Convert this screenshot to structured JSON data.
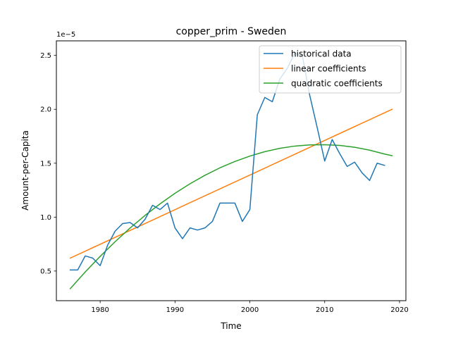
{
  "chart_data": {
    "type": "line",
    "title": "copper_prim - Sweden",
    "xlabel": "Time",
    "ylabel": "Amount-per-Capita",
    "y_offset_label": "1e−5",
    "xlim": [
      1974.15,
      2020.85
    ],
    "ylim": [
      0.225,
      2.635
    ],
    "x_ticks": [
      1980,
      1990,
      2000,
      2010,
      2020
    ],
    "y_ticks": [
      0.5,
      1.0,
      1.5,
      2.0,
      2.5
    ],
    "y_tick_labels": [
      "0.5",
      "1.0",
      "1.5",
      "2.0",
      "2.5"
    ],
    "grid": false,
    "legend_position": "upper right",
    "series": [
      {
        "name": "historical data",
        "color": "#1f77b4",
        "x": [
          1976,
          1977,
          1978,
          1979,
          1980,
          1981,
          1982,
          1983,
          1984,
          1985,
          1986,
          1987,
          1988,
          1989,
          1990,
          1991,
          1992,
          1993,
          1994,
          1995,
          1996,
          1997,
          1998,
          1999,
          2000,
          2001,
          2002,
          2003,
          2004,
          2005,
          2006,
          2007,
          2008,
          2009,
          2010,
          2011,
          2012,
          2013,
          2014,
          2015,
          2016,
          2017,
          2018
        ],
        "values": [
          0.51,
          0.51,
          0.64,
          0.62,
          0.55,
          0.74,
          0.87,
          0.94,
          0.95,
          0.9,
          0.98,
          1.11,
          1.07,
          1.13,
          0.9,
          0.8,
          0.9,
          0.88,
          0.9,
          0.96,
          1.13,
          1.13,
          1.13,
          0.96,
          1.07,
          1.95,
          2.11,
          2.07,
          2.28,
          2.38,
          2.52,
          2.5,
          2.13,
          1.83,
          1.52,
          1.72,
          1.59,
          1.47,
          1.51,
          1.41,
          1.34,
          1.5,
          1.48
        ]
      },
      {
        "name": "linear coefficients",
        "color": "#ff7f0e",
        "x": [
          1976,
          2019
        ],
        "values": [
          0.62,
          2.0
        ]
      },
      {
        "name": "quadratic coefficients",
        "color": "#2ca02c",
        "x": [
          1976,
          1978,
          1980,
          1982,
          1984,
          1986,
          1988,
          1990,
          1992,
          1994,
          1996,
          1998,
          2000,
          2002,
          2004,
          2006,
          2008,
          2010,
          2012,
          2014,
          2016,
          2018,
          2019
        ],
        "values": [
          0.336,
          0.491,
          0.636,
          0.772,
          0.899,
          1.016,
          1.123,
          1.221,
          1.309,
          1.388,
          1.457,
          1.516,
          1.566,
          1.607,
          1.638,
          1.659,
          1.67,
          1.672,
          1.665,
          1.648,
          1.621,
          1.585,
          1.57
        ]
      }
    ]
  }
}
